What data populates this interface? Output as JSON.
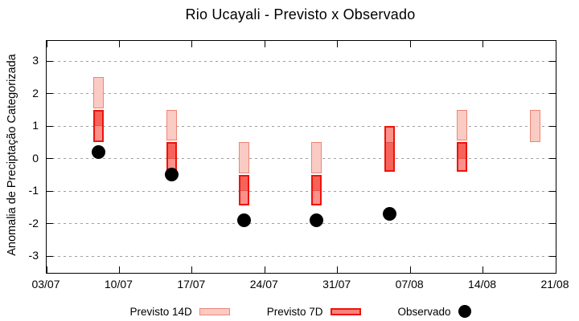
{
  "chart_data": {
    "type": "range-bar",
    "title": "Rio Ucayali - Previsto x Observado",
    "ylabel": "Anomalia de Preciptação Categorizada",
    "x_tick_labels": [
      "03/07",
      "10/07",
      "17/07",
      "24/07",
      "31/07",
      "07/08",
      "14/08",
      "21/08"
    ],
    "y_tick_labels": [
      "3",
      "2",
      "1",
      "0",
      "-1",
      "-2",
      "-3"
    ],
    "y_tick_values": [
      3,
      2,
      1,
      0,
      -1,
      -2,
      -3
    ],
    "ylim": [
      -3.6,
      3.6
    ],
    "grid": "horizontal-dashed",
    "legend_position": "bottom-center",
    "legend": [
      {
        "label": "Previsto 14D",
        "swatch": "pink-box"
      },
      {
        "label": "Previsto 7D",
        "swatch": "red-box"
      },
      {
        "label": "Observado",
        "swatch": "black-dot"
      }
    ],
    "columns": [
      {
        "date": "08/07",
        "previsto_14d": [
          1.0,
          2.5
        ],
        "previsto_7d": [
          0.5,
          1.5
        ],
        "observado": 0.2
      },
      {
        "date": "15/07",
        "previsto_14d": [
          0.0,
          1.5
        ],
        "previsto_7d": [
          -0.4,
          0.5
        ],
        "observado": -0.5
      },
      {
        "date": "22/07",
        "previsto_14d": [
          -1.0,
          0.5
        ],
        "previsto_7d": [
          -1.45,
          -0.5
        ],
        "observado": -1.9
      },
      {
        "date": "29/07",
        "previsto_14d": [
          -1.0,
          0.5
        ],
        "previsto_7d": [
          -1.45,
          -0.5
        ],
        "observado": -1.9
      },
      {
        "date": "05/08",
        "previsto_14d": [
          -0.5,
          0.5
        ],
        "previsto_7d": [
          -0.4,
          1.0
        ],
        "observado": -1.7
      },
      {
        "date": "12/08",
        "previsto_14d": [
          0.0,
          1.5
        ],
        "previsto_7d": [
          -0.4,
          0.5
        ],
        "observado": null
      },
      {
        "date": "19/08",
        "previsto_14d": [
          0.5,
          1.5
        ],
        "previsto_7d": null,
        "observado": null
      }
    ],
    "colors": {
      "previsto_14d_fill": "#f9cbc3",
      "previsto_14d_border": "#ef8477",
      "previsto_7d_fill": "#fa918a",
      "previsto_7d_border": "#ed1309",
      "overlap_fill": "#f7635a",
      "observado": "#000000",
      "grid": "#9e9e9e",
      "axis": "#000000"
    }
  }
}
